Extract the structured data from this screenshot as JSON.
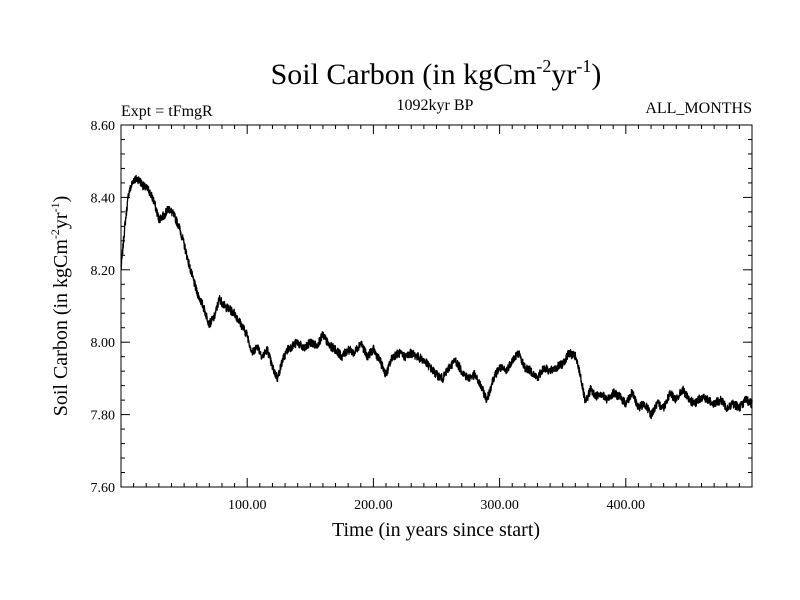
{
  "chart_data": {
    "type": "line",
    "title": {
      "text": "Soil Carbon (in kgCm",
      "sup1": "-2",
      "mid": "yr",
      "sup2": "-1",
      "close": ")"
    },
    "subtitle_left": "Expt = tFmgR",
    "subtitle_center": "1092kyr BP",
    "subtitle_right": "ALL_MONTHS",
    "xlabel": "Time (in years since start)",
    "ylabel": {
      "text": "Soil Carbon (in kgCm",
      "sup1": "-2",
      "mid": "yr",
      "sup2": "-1",
      "close": ")"
    },
    "xlim": [
      0,
      500
    ],
    "ylim": [
      7.6,
      8.6
    ],
    "x_ticks": [
      100,
      200,
      300,
      400
    ],
    "x_tick_labels": [
      "100.00",
      "200.00",
      "300.00",
      "400.00"
    ],
    "y_ticks": [
      7.6,
      7.8,
      8.0,
      8.2,
      8.4,
      8.6
    ],
    "y_tick_labels": [
      "7.60",
      "7.80",
      "8.00",
      "8.20",
      "8.40",
      "8.60"
    ],
    "noise_amplitude": 0.012,
    "line_color": "#000000",
    "series": [
      {
        "name": "Soil Carbon",
        "x": [
          0,
          3,
          6,
          10,
          14,
          18,
          22,
          26,
          30,
          34,
          38,
          42,
          46,
          50,
          55,
          60,
          65,
          70,
          74,
          78,
          82,
          86,
          90,
          95,
          100,
          104,
          108,
          112,
          116,
          120,
          124,
          128,
          132,
          136,
          140,
          145,
          150,
          155,
          160,
          165,
          170,
          175,
          180,
          185,
          190,
          195,
          200,
          205,
          210,
          215,
          220,
          225,
          230,
          235,
          240,
          245,
          250,
          255,
          260,
          265,
          270,
          275,
          280,
          285,
          290,
          295,
          300,
          305,
          310,
          315,
          320,
          325,
          330,
          335,
          340,
          345,
          350,
          355,
          360,
          364,
          368,
          372,
          376,
          380,
          385,
          390,
          395,
          400,
          405,
          410,
          415,
          420,
          425,
          430,
          435,
          440,
          445,
          450,
          455,
          460,
          465,
          470,
          475,
          480,
          485,
          490,
          495,
          500
        ],
        "y": [
          8.2,
          8.32,
          8.41,
          8.45,
          8.45,
          8.43,
          8.42,
          8.39,
          8.34,
          8.35,
          8.37,
          8.35,
          8.32,
          8.27,
          8.2,
          8.14,
          8.1,
          8.05,
          8.07,
          8.12,
          8.1,
          8.09,
          8.08,
          8.05,
          8.02,
          7.97,
          7.99,
          7.96,
          7.98,
          7.93,
          7.9,
          7.95,
          7.98,
          7.99,
          8.0,
          7.98,
          8.0,
          7.99,
          8.02,
          7.99,
          7.98,
          7.96,
          7.98,
          7.97,
          8.0,
          7.96,
          7.98,
          7.95,
          7.91,
          7.96,
          7.97,
          7.96,
          7.97,
          7.96,
          7.95,
          7.93,
          7.91,
          7.9,
          7.93,
          7.95,
          7.92,
          7.9,
          7.91,
          7.88,
          7.84,
          7.9,
          7.93,
          7.92,
          7.95,
          7.97,
          7.93,
          7.92,
          7.9,
          7.93,
          7.92,
          7.93,
          7.94,
          7.97,
          7.96,
          7.91,
          7.83,
          7.87,
          7.85,
          7.86,
          7.84,
          7.86,
          7.85,
          7.83,
          7.86,
          7.82,
          7.83,
          7.8,
          7.83,
          7.82,
          7.86,
          7.84,
          7.87,
          7.84,
          7.83,
          7.85,
          7.84,
          7.83,
          7.84,
          7.82,
          7.83,
          7.82,
          7.84,
          7.83
        ]
      }
    ]
  }
}
